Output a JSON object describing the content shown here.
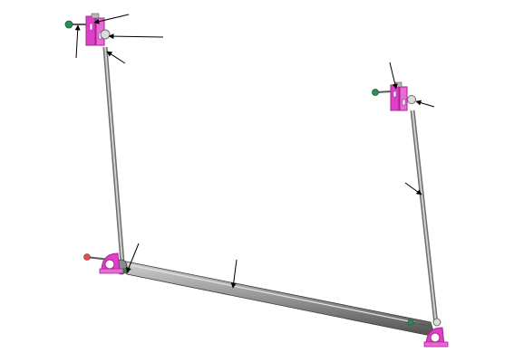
{
  "diagram": {
    "kind": "isometric assembly drawing",
    "labels_visible": false,
    "callout_count": 13,
    "colors": {
      "background": "#ffffff",
      "bracket": "#e040c8",
      "bracket_dark": "#a4248f",
      "rod": "#a9a9a9",
      "rod_dark": "#6e6e6e",
      "tube_light": "#c4c4c4",
      "tube_dark": "#555555",
      "knob": "#2e8b57",
      "arrow": "#000000"
    },
    "components": [
      {
        "name": "top-left-bracket"
      },
      {
        "name": "top-right-bracket"
      },
      {
        "name": "left-hanger-rod"
      },
      {
        "name": "right-hanger-rod"
      },
      {
        "name": "bottom-left-bracket"
      },
      {
        "name": "bottom-right-bracket"
      },
      {
        "name": "horizontal-tube"
      }
    ]
  }
}
